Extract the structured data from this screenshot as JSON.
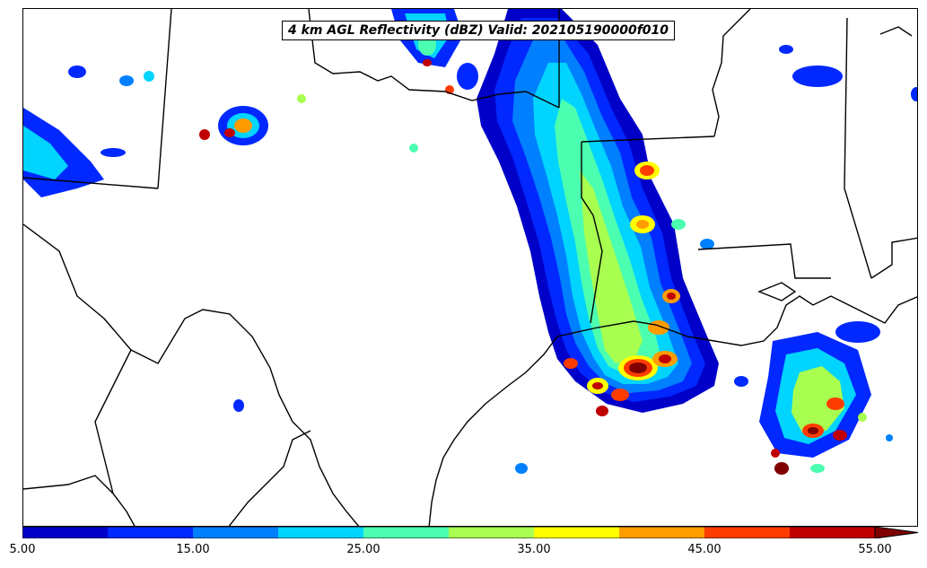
{
  "title": "4 km AGL Reflectivity (dBZ) Valid: 202105190000f010",
  "colorbar": {
    "units": "dBZ",
    "range": [
      5,
      60
    ],
    "interval": 5,
    "extend": "max",
    "labels": [
      "5.00",
      "15.00",
      "25.00",
      "35.00",
      "45.00",
      "55.00"
    ],
    "colors": [
      "#0000c8",
      "#0028ff",
      "#0080ff",
      "#00d4ff",
      "#4cffb0",
      "#a8ff50",
      "#ffff00",
      "#ff9c00",
      "#ff3c00",
      "#c00000",
      "#800000"
    ]
  },
  "map": {
    "region": "Texas / Louisiana Gulf Coast",
    "background": "#ffffff",
    "boundary_color": "#000000"
  }
}
